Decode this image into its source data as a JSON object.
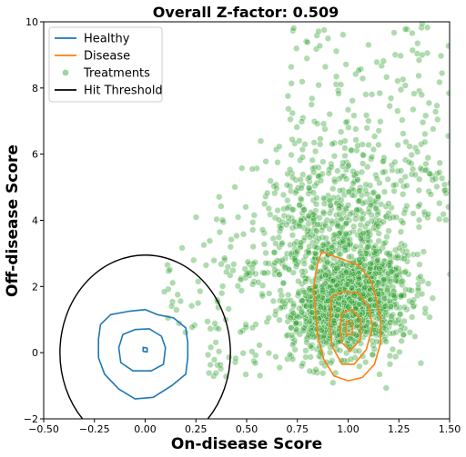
{
  "chart_data": {
    "type": "scatter",
    "title": "Overall Z-factor: 0.509",
    "xlabel": "On-disease Score",
    "ylabel": "Off-disease Score",
    "xlim": [
      -0.5,
      1.5
    ],
    "ylim": [
      -2,
      10
    ],
    "xticks": [
      "−0.50",
      "−0.25",
      "0.00",
      "0.25",
      "0.50",
      "0.75",
      "1.00",
      "1.25",
      "1.50"
    ],
    "yticks": [
      "−2",
      "0",
      "2",
      "4",
      "6",
      "8",
      "10"
    ],
    "grid": false,
    "legend_position": "top-left",
    "legend": [
      {
        "label": "Healthy",
        "kind": "line",
        "color": "#1f77b4"
      },
      {
        "label": "Disease",
        "kind": "line",
        "color": "#ff7f0e"
      },
      {
        "label": "Treatments",
        "kind": "marker",
        "color": "#2ca02c"
      },
      {
        "label": "Hit Threshold",
        "kind": "line",
        "color": "#000000"
      }
    ],
    "series": [
      {
        "name": "Healthy",
        "kind": "density-contours",
        "color": "#1f77b4",
        "contours": [
          [
            [
              -0.22,
              0.85
            ],
            [
              -0.17,
              1.15
            ],
            [
              -0.08,
              1.25
            ],
            [
              0.0,
              1.3
            ],
            [
              0.06,
              1.15
            ],
            [
              0.14,
              1.05
            ],
            [
              0.2,
              0.75
            ],
            [
              0.21,
              0.3
            ],
            [
              0.21,
              -0.15
            ],
            [
              0.2,
              -0.65
            ],
            [
              0.13,
              -1.0
            ],
            [
              0.04,
              -1.35
            ],
            [
              -0.05,
              -1.4
            ],
            [
              -0.13,
              -1.1
            ],
            [
              -0.2,
              -0.65
            ],
            [
              -0.23,
              -0.15
            ],
            [
              -0.23,
              0.4
            ],
            [
              -0.22,
              0.85
            ]
          ],
          [
            [
              -0.11,
              0.55
            ],
            [
              -0.05,
              0.7
            ],
            [
              0.02,
              0.72
            ],
            [
              0.08,
              0.5
            ],
            [
              0.1,
              0.15
            ],
            [
              0.09,
              -0.35
            ],
            [
              0.03,
              -0.55
            ],
            [
              -0.06,
              -0.55
            ],
            [
              -0.12,
              -0.3
            ],
            [
              -0.13,
              0.15
            ],
            [
              -0.11,
              0.55
            ]
          ],
          [
            [
              -0.01,
              0.16
            ],
            [
              0.01,
              0.14
            ],
            [
              0.01,
              0.02
            ],
            [
              -0.01,
              0.04
            ],
            [
              -0.01,
              0.16
            ]
          ]
        ]
      },
      {
        "name": "Disease",
        "kind": "density-contours",
        "color": "#ff7f0e",
        "contours": [
          [
            [
              0.87,
              3.05
            ],
            [
              0.96,
              2.85
            ],
            [
              1.05,
              2.65
            ],
            [
              1.11,
              2.2
            ],
            [
              1.14,
              1.6
            ],
            [
              1.16,
              1.0
            ],
            [
              1.16,
              0.3
            ],
            [
              1.13,
              -0.35
            ],
            [
              1.07,
              -0.75
            ],
            [
              1.0,
              -0.85
            ],
            [
              0.93,
              -0.7
            ],
            [
              0.88,
              -0.2
            ],
            [
              0.85,
              0.5
            ],
            [
              0.84,
              1.2
            ],
            [
              0.83,
              2.0
            ],
            [
              0.85,
              2.7
            ],
            [
              0.87,
              3.05
            ]
          ],
          [
            [
              0.92,
              1.7
            ],
            [
              0.98,
              1.85
            ],
            [
              1.05,
              1.8
            ],
            [
              1.1,
              1.4
            ],
            [
              1.12,
              0.8
            ],
            [
              1.09,
              0.1
            ],
            [
              1.03,
              -0.35
            ],
            [
              0.97,
              -0.35
            ],
            [
              0.92,
              0.2
            ],
            [
              0.91,
              0.9
            ],
            [
              0.92,
              1.7
            ]
          ],
          [
            [
              0.97,
              1.2
            ],
            [
              1.02,
              1.3
            ],
            [
              1.06,
              1.0
            ],
            [
              1.06,
              0.4
            ],
            [
              1.01,
              0.05
            ],
            [
              0.97,
              0.3
            ],
            [
              0.96,
              0.8
            ],
            [
              0.97,
              1.2
            ]
          ],
          [
            [
              0.99,
              0.95
            ],
            [
              1.02,
              0.9
            ],
            [
              1.02,
              0.55
            ],
            [
              0.99,
              0.55
            ],
            [
              0.99,
              0.95
            ]
          ]
        ]
      },
      {
        "name": "Treatments",
        "kind": "points",
        "color": "#2ca02c",
        "n_points": 2400,
        "center": [
          1.0,
          1.6
        ],
        "spread": "dense cloud from x 0.65 to 1.5, y -0.5 to 4, with a sparse tail up to y 10 and scattered points near the origin"
      },
      {
        "name": "Hit Threshold",
        "kind": "ellipse",
        "color": "#000000",
        "center": [
          0.0,
          0.0
        ],
        "radius_x": 0.42,
        "radius_y": 2.95
      }
    ]
  }
}
